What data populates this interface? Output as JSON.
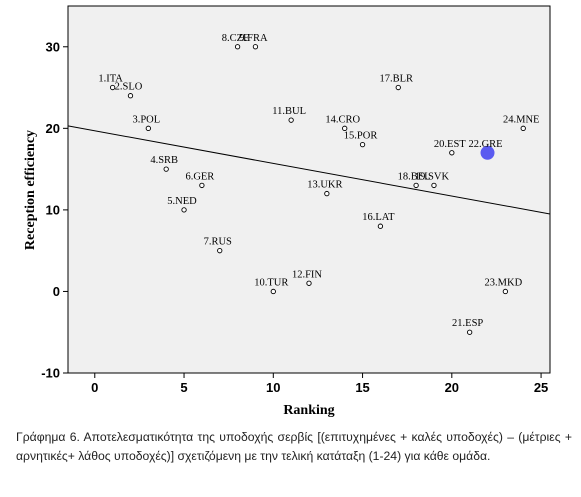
{
  "chart_data": {
    "type": "scatter",
    "xlabel": "Ranking",
    "ylabel": "Reception efficiency",
    "xlim": [
      -1.5,
      25.5
    ],
    "ylim": [
      -10,
      35
    ],
    "xticks": [
      0,
      5,
      10,
      15,
      20,
      25
    ],
    "yticks": [
      -10,
      0,
      10,
      20,
      30
    ],
    "grid": false,
    "points": [
      {
        "label": "1.ITA",
        "x": 1,
        "y": 25
      },
      {
        "label": "2.SLO",
        "x": 2,
        "y": 24
      },
      {
        "label": "3.POL",
        "x": 3,
        "y": 20
      },
      {
        "label": "4.SRB",
        "x": 4,
        "y": 15
      },
      {
        "label": "5.NED",
        "x": 5,
        "y": 10
      },
      {
        "label": "6.GER",
        "x": 6,
        "y": 13
      },
      {
        "label": "7.RUS",
        "x": 7,
        "y": 5
      },
      {
        "label": "8.CZE",
        "x": 8,
        "y": 30
      },
      {
        "label": "9.FRA",
        "x": 9,
        "y": 30
      },
      {
        "label": "10.TUR",
        "x": 10,
        "y": 0
      },
      {
        "label": "11.BUL",
        "x": 11,
        "y": 21
      },
      {
        "label": "12.FIN",
        "x": 12,
        "y": 1
      },
      {
        "label": "13.UKR",
        "x": 13,
        "y": 12
      },
      {
        "label": "14.CRO",
        "x": 14,
        "y": 20
      },
      {
        "label": "15.POR",
        "x": 15,
        "y": 18
      },
      {
        "label": "16.LAT",
        "x": 16,
        "y": 8
      },
      {
        "label": "17.BLR",
        "x": 17,
        "y": 25
      },
      {
        "label": "18.BEL",
        "x": 18,
        "y": 13
      },
      {
        "label": "19.SVK",
        "x": 19,
        "y": 13
      },
      {
        "label": "20.EST",
        "x": 20,
        "y": 17
      },
      {
        "label": "21.ESP",
        "x": 21,
        "y": -5
      },
      {
        "label": "22.GRE",
        "x": 22,
        "y": 17,
        "highlight": true
      },
      {
        "label": "23.MKD",
        "x": 23,
        "y": 0
      },
      {
        "label": "24.MNE",
        "x": 24,
        "y": 20
      }
    ],
    "trendline": {
      "x": [
        -1.5,
        25.5
      ],
      "y": [
        20.3,
        9.5
      ]
    },
    "highlight_color": "#5b5bf0",
    "marker_color": "#000000"
  },
  "caption": "Γράφημα 6. Αποτελεσματικότητα της υποδοχής σερβίς [(επιτυχημένες + καλές υποδοχές) – (μέτριες + αρνητικές+ λάθος υποδοχές)] σχετιζόμενη με την τελική κατάταξη (1-24) για κάθε ομάδα."
}
